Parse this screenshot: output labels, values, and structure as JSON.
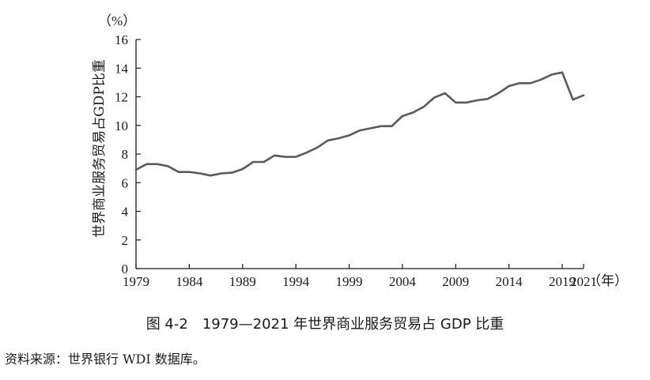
{
  "chart_data": {
    "type": "line",
    "title": "图 4-2　1979—2021 年世界商业服务贸易占 GDP 比重",
    "ylabel": "世界商业服务贸易占GDP比重",
    "y_unit": "（%）",
    "x_unit": "（年）",
    "xlim": [
      1979,
      2021
    ],
    "ylim": [
      0,
      16
    ],
    "x_ticks": [
      "1979",
      "1984",
      "1989",
      "1994",
      "1999",
      "2004",
      "2009",
      "2014",
      "2019",
      "2021"
    ],
    "y_ticks": [
      "0",
      "2",
      "4",
      "6",
      "8",
      "10",
      "12",
      "14",
      "16"
    ],
    "grid": false,
    "line_color": "#5a5a5a",
    "series": [
      {
        "x": [
          1979,
          1980,
          1981,
          1982,
          1983,
          1984,
          1985,
          1986,
          1987,
          1988,
          1989,
          1990,
          1991,
          1992,
          1993,
          1994,
          1995,
          1996,
          1997,
          1998,
          1999,
          2000,
          2001,
          2002,
          2003,
          2004,
          2005,
          2006,
          2007,
          2008,
          2009,
          2010,
          2011,
          2012,
          2013,
          2014,
          2015,
          2016,
          2017,
          2018,
          2019,
          2020,
          2021
        ],
        "values": [
          6.9,
          7.3,
          7.3,
          7.15,
          6.75,
          6.75,
          6.65,
          6.5,
          6.65,
          6.7,
          6.95,
          7.45,
          7.45,
          7.9,
          7.8,
          7.8,
          8.1,
          8.45,
          8.95,
          9.1,
          9.3,
          9.65,
          9.8,
          9.95,
          9.95,
          10.65,
          10.9,
          11.3,
          11.95,
          12.25,
          11.6,
          11.6,
          11.75,
          11.85,
          12.25,
          12.75,
          12.95,
          12.95,
          13.2,
          13.55,
          13.7,
          11.8,
          12.1
        ]
      }
    ]
  },
  "caption": "图 4-2　1979—2021 年世界商业服务贸易占 GDP 比重",
  "source": "资料来源：世界银行 WDI 数据库。"
}
